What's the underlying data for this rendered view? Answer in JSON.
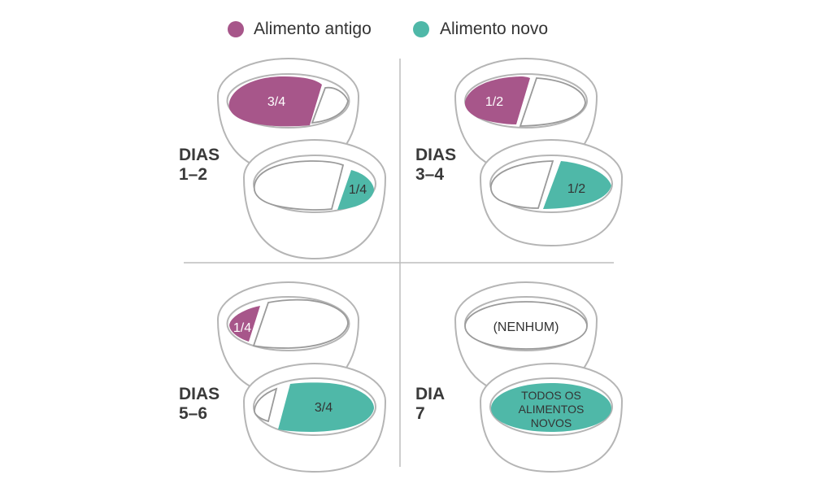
{
  "colors": {
    "old_food": "#a7568a",
    "new_food": "#4fb8a8",
    "divider": "#bdbdbd",
    "bowl_outline": "#b5b5b5"
  },
  "legend": [
    {
      "label": "Alimento antigo",
      "color_key": "old_food"
    },
    {
      "label": "Alimento novo",
      "color_key": "new_food"
    }
  ],
  "panels": [
    {
      "day_line1": "DIAS",
      "day_line2": "1–2",
      "old_label": "3/4",
      "new_label": "1/4"
    },
    {
      "day_line1": "DIAS",
      "day_line2": "3–4",
      "old_label": "1/2",
      "new_label": "1/2"
    },
    {
      "day_line1": "DIAS",
      "day_line2": "5–6",
      "old_label": "1/4",
      "new_label": "3/4"
    },
    {
      "day_line1": "DIA",
      "day_line2": "7",
      "old_label": "(NENHUM)",
      "new_label_lines": [
        "TODOS OS",
        "ALIMENTOS",
        "NOVOS"
      ]
    }
  ]
}
